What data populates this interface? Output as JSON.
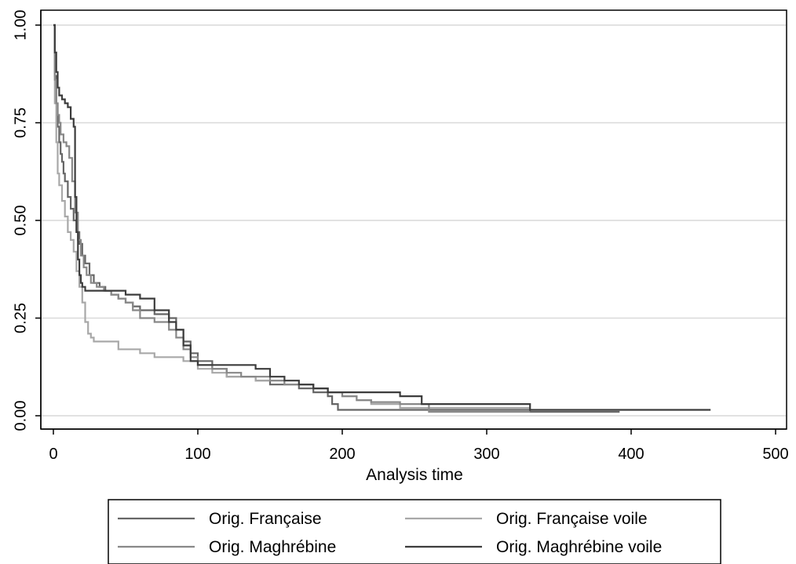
{
  "chart_data": {
    "type": "line",
    "step": true,
    "xlabel": "Analysis time",
    "ylabel": "",
    "xlim": [
      0,
      500
    ],
    "ylim": [
      0,
      1
    ],
    "xticks": [
      0,
      100,
      200,
      300,
      400,
      500
    ],
    "xtick_labels": [
      "0",
      "100",
      "200",
      "300",
      "400",
      "500"
    ],
    "yticks": [
      0,
      0.25,
      0.5,
      0.75,
      1
    ],
    "ytick_labels": [
      "0.00",
      "0.25",
      "0.50",
      "0.75",
      "1.00"
    ],
    "grid": "horizontal",
    "legend_position": "bottom",
    "series": [
      {
        "name": "Orig. Française",
        "color": "#666666",
        "x": [
          0,
          1,
          2,
          3,
          4,
          5,
          6,
          7,
          8,
          10,
          12,
          14,
          16,
          18,
          20,
          22,
          25,
          28,
          32,
          36,
          40,
          45,
          50,
          55,
          60,
          70,
          80,
          85,
          90,
          95,
          100,
          110,
          120,
          130,
          140,
          150,
          160,
          170,
          180,
          190,
          193,
          197,
          210,
          230,
          255,
          280,
          300,
          330,
          392
        ],
        "y": [
          1,
          0.87,
          0.8,
          0.74,
          0.7,
          0.67,
          0.65,
          0.62,
          0.6,
          0.56,
          0.53,
          0.5,
          0.47,
          0.44,
          0.41,
          0.39,
          0.36,
          0.34,
          0.33,
          0.32,
          0.31,
          0.3,
          0.29,
          0.28,
          0.27,
          0.26,
          0.25,
          0.22,
          0.19,
          0.16,
          0.14,
          0.12,
          0.1,
          0.1,
          0.09,
          0.08,
          0.08,
          0.07,
          0.06,
          0.05,
          0.03,
          0.015,
          0.015,
          0.015,
          0.015,
          0.015,
          0.015,
          0.01,
          0.01
        ]
      },
      {
        "name": "Orig. Française voile",
        "color": "#a8a8a8",
        "x": [
          0,
          1,
          2,
          3,
          4,
          6,
          8,
          10,
          12,
          14,
          16,
          18,
          20,
          22,
          24,
          26,
          28,
          30,
          45,
          60,
          70,
          90,
          100,
          110,
          120,
          130,
          140,
          150,
          160,
          170,
          180,
          190,
          200,
          210,
          220,
          240,
          260,
          303,
          330
        ],
        "y": [
          1,
          0.8,
          0.7,
          0.62,
          0.59,
          0.55,
          0.51,
          0.47,
          0.45,
          0.42,
          0.37,
          0.33,
          0.29,
          0.24,
          0.21,
          0.2,
          0.19,
          0.19,
          0.17,
          0.16,
          0.15,
          0.14,
          0.12,
          0.11,
          0.1,
          0.1,
          0.09,
          0.09,
          0.08,
          0.08,
          0.07,
          0.06,
          0.05,
          0.04,
          0.03,
          0.02,
          0.02,
          0.02,
          0.02
        ]
      },
      {
        "name": "Orig. Maghrébine",
        "color": "#888888",
        "x": [
          0,
          1,
          2,
          3,
          4,
          5,
          7,
          9,
          11,
          13,
          15,
          17,
          19,
          21,
          23,
          26,
          30,
          35,
          40,
          45,
          50,
          55,
          60,
          70,
          80,
          85,
          90,
          95,
          100,
          110,
          120,
          130,
          140,
          150,
          160,
          170,
          180,
          190,
          200,
          210,
          220,
          240,
          260,
          330
        ],
        "y": [
          1,
          0.86,
          0.8,
          0.77,
          0.75,
          0.72,
          0.7,
          0.69,
          0.66,
          0.6,
          0.52,
          0.45,
          0.41,
          0.38,
          0.36,
          0.34,
          0.33,
          0.32,
          0.31,
          0.3,
          0.29,
          0.27,
          0.25,
          0.24,
          0.22,
          0.2,
          0.17,
          0.15,
          0.13,
          0.12,
          0.11,
          0.1,
          0.1,
          0.09,
          0.08,
          0.08,
          0.07,
          0.06,
          0.05,
          0.04,
          0.035,
          0.03,
          0.01,
          0.01
        ]
      },
      {
        "name": "Orig. Maghrébine voile",
        "color": "#3c3c3c",
        "x": [
          0,
          1,
          2,
          3,
          4,
          6,
          8,
          10,
          12,
          14,
          15,
          16,
          17,
          18,
          19,
          20,
          22,
          25,
          30,
          40,
          50,
          60,
          70,
          80,
          85,
          90,
          95,
          100,
          110,
          120,
          140,
          150,
          160,
          170,
          180,
          190,
          200,
          210,
          220,
          240,
          255,
          280,
          300,
          330,
          400,
          455
        ],
        "y": [
          1,
          0.93,
          0.88,
          0.84,
          0.82,
          0.81,
          0.8,
          0.79,
          0.76,
          0.74,
          0.56,
          0.47,
          0.4,
          0.36,
          0.34,
          0.33,
          0.32,
          0.32,
          0.32,
          0.32,
          0.31,
          0.3,
          0.27,
          0.24,
          0.22,
          0.18,
          0.14,
          0.13,
          0.13,
          0.13,
          0.12,
          0.1,
          0.09,
          0.08,
          0.07,
          0.06,
          0.06,
          0.06,
          0.06,
          0.05,
          0.03,
          0.03,
          0.03,
          0.015,
          0.015,
          0.015
        ]
      }
    ]
  }
}
